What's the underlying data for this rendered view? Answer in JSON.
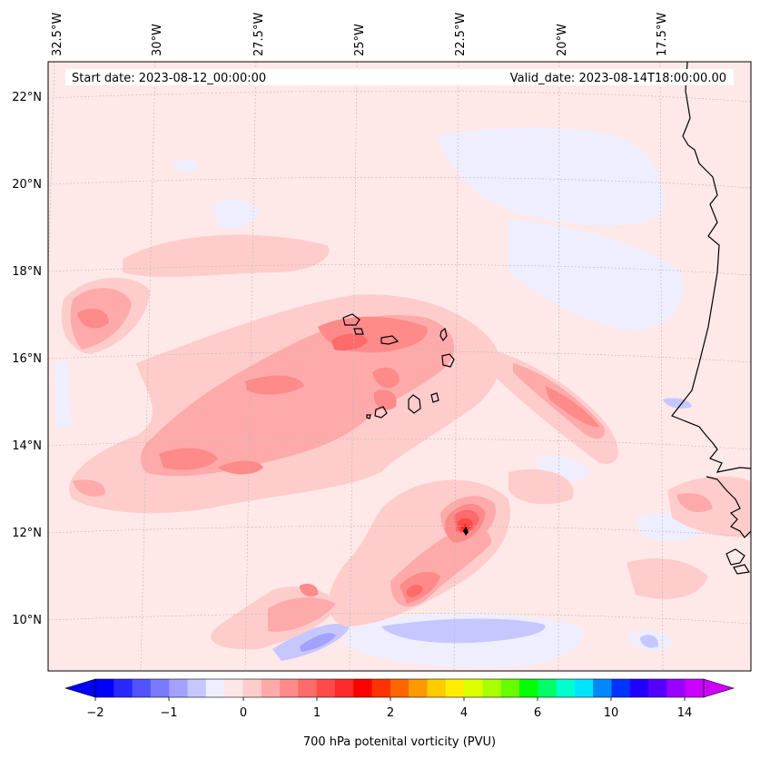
{
  "map": {
    "info": {
      "start_date": "Start date: 2023-08-12_00:00:00",
      "valid_date": "Valid_date: 2023-08-14T18:00:00.00"
    },
    "lon_labels": [
      "32.5°W",
      "30°W",
      "27.5°W",
      "25°W",
      "22.5°W",
      "20°W",
      "17.5°W"
    ],
    "lat_labels": [
      "22°N",
      "20°N",
      "18°N",
      "16°N",
      "14°N",
      "12°N",
      "10°N"
    ],
    "colors": {
      "background": "#ffe8e8",
      "coastline": "#000000",
      "gridline": "#b9b9b9"
    }
  },
  "colorbar": {
    "title": "700 hPa potenital vorticity (PVU)",
    "tick_labels": [
      "−2",
      "−1",
      "0",
      "1",
      "2",
      "4",
      "6",
      "10",
      "14"
    ],
    "levels": [
      "-2",
      "-1.75",
      "-1.5",
      "-1.25",
      "-1",
      "-0.75",
      "-0.5",
      "-0.25",
      "0",
      "0.25",
      "0.5",
      "0.75",
      "1",
      "1.25",
      "1.5",
      "1.75",
      "2",
      "2.5",
      "3",
      "3.5",
      "4",
      "4.5",
      "5",
      "5.5",
      "6",
      "7",
      "8",
      "9",
      "10",
      "11",
      "12",
      "13",
      "14",
      "15"
    ],
    "colors": [
      "#0000ff",
      "#2929ff",
      "#5252ff",
      "#7a7aff",
      "#a3a3ff",
      "#c7c7ff",
      "#eeeeff",
      "#ffe6e6",
      "#ffcccc",
      "#ffaaaa",
      "#ff8a8a",
      "#ff6a6a",
      "#ff4a4a",
      "#ff2a2a",
      "#ff0000",
      "#ff3300",
      "#ff6600",
      "#ff9900",
      "#ffcc00",
      "#ffee00",
      "#ddff00",
      "#aaff00",
      "#66ff00",
      "#00ff00",
      "#00ff66",
      "#00ffcc",
      "#00e5ff",
      "#0088ff",
      "#0033ff",
      "#2200ff",
      "#5500ff",
      "#9900ff",
      "#cc00ff"
    ],
    "under_color": "#0000ff",
    "over_color": "#cc00ff"
  }
}
